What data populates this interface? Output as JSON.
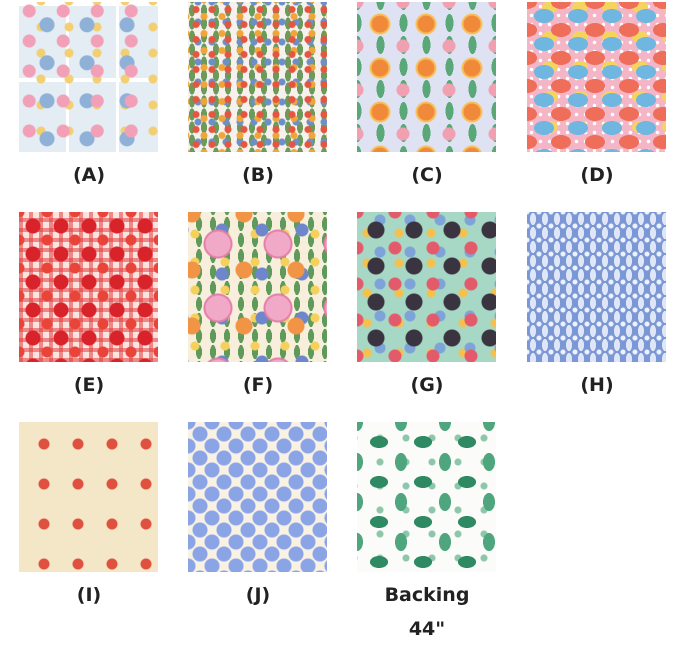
{
  "swatches": [
    {
      "label": "(A)"
    },
    {
      "label": "(B)"
    },
    {
      "label": "(C)"
    },
    {
      "label": "(D)"
    },
    {
      "label": "(E)"
    },
    {
      "label": "(F)"
    },
    {
      "label": "(G)"
    },
    {
      "label": "(H)"
    },
    {
      "label": "(I)"
    },
    {
      "label": "(J)"
    },
    {
      "label": "Backing 44\""
    }
  ]
}
